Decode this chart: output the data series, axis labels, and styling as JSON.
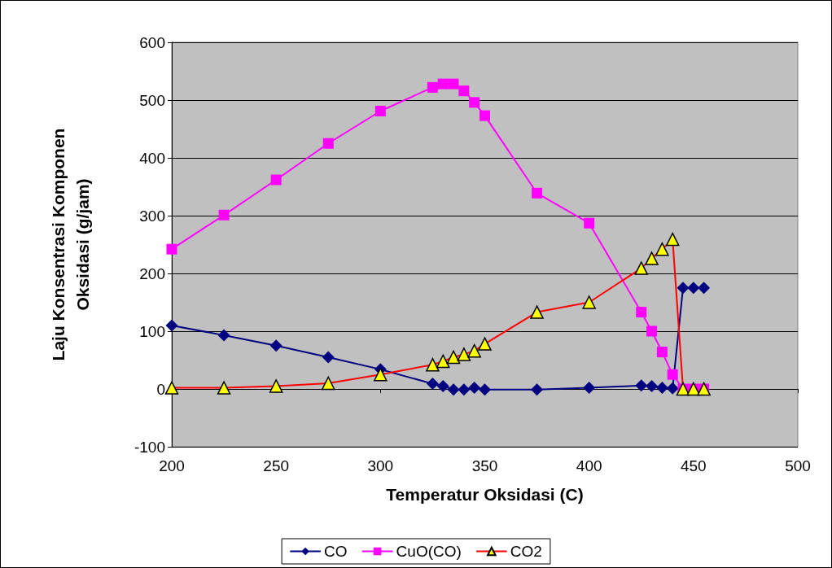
{
  "chart_data": {
    "type": "line",
    "xlabel": "Temperatur Oksidasi (C)",
    "ylabel": "Laju Konsentrasi Komponen Oksidasi (g/jam)",
    "x": [
      200,
      225,
      250,
      275,
      300,
      325,
      330,
      335,
      340,
      345,
      350,
      375,
      400,
      425,
      430,
      435,
      440,
      445,
      450,
      455
    ],
    "series": [
      {
        "name": "CO",
        "color": "#000080",
        "marker": "diamond",
        "values": [
          110,
          93,
          75,
          55,
          34,
          9,
          5,
          -1,
          -1,
          2,
          -1,
          -1,
          2,
          6,
          5,
          2,
          1,
          175,
          175,
          175
        ]
      },
      {
        "name": "CuO(CO)",
        "color": "#ff00ff",
        "marker": "square",
        "values": [
          242,
          301,
          362,
          425,
          481,
          522,
          528,
          528,
          516,
          496,
          473,
          339,
          287,
          133,
          100,
          64,
          25,
          0,
          0,
          0
        ]
      },
      {
        "name": "CO2",
        "color": "#ff0000",
        "marker": "triangle",
        "values": [
          2,
          2,
          5,
          10,
          25,
          42,
          48,
          55,
          60,
          66,
          78,
          133,
          150,
          209,
          226,
          242,
          259,
          0,
          0,
          0
        ]
      }
    ],
    "xlim": [
      200,
      500
    ],
    "xticks": [
      200,
      250,
      300,
      350,
      400,
      450,
      500
    ],
    "ylim": [
      -100,
      600
    ],
    "yticks": [
      -100,
      0,
      100,
      200,
      300,
      400,
      500,
      600
    ],
    "grid": "y",
    "legend": "bottom",
    "line_style": "solid"
  }
}
